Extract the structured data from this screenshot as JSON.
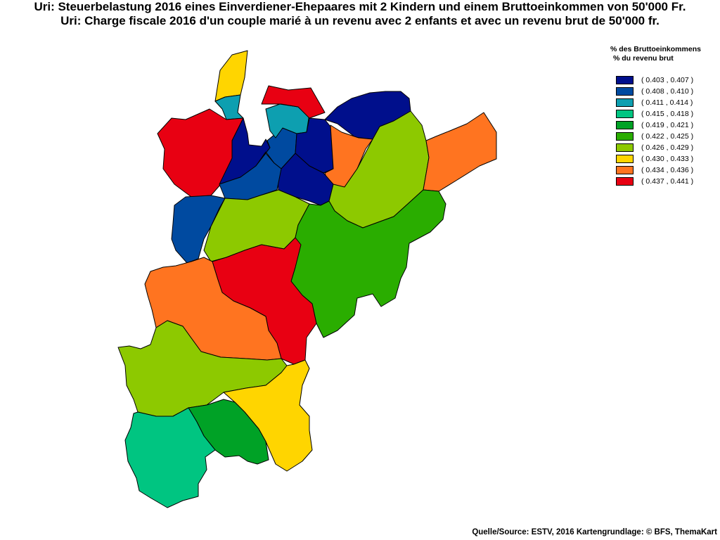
{
  "title_de": "Uri: Steuerbelastung 2016 eines Einverdiener-Ehepaares mit 2 Kindern und einem Bruttoeinkommen von 50'000 Fr.",
  "title_fr": "Uri: Charge fiscale 2016 d'un couple marié à un revenu avec 2 enfants et avec un revenu brut de 50'000 fr.",
  "legend": {
    "heading_de": "% des Bruttoeinkommens",
    "heading_fr": "% du revenu brut",
    "classes": [
      {
        "label": "( 0.403 , 0.407 )",
        "color": "#000f8c"
      },
      {
        "label": "( 0.408 , 0.410 )",
        "color": "#004aa0"
      },
      {
        "label": "( 0.411 , 0.414 )",
        "color": "#0d9fb0"
      },
      {
        "label": "( 0.415 , 0.418 )",
        "color": "#00c581"
      },
      {
        "label": "( 0.419 , 0.421 )",
        "color": "#00a226"
      },
      {
        "label": "( 0.422 , 0.425 )",
        "color": "#2aad00"
      },
      {
        "label": "( 0.426 , 0.429 )",
        "color": "#8dc900"
      },
      {
        "label": "( 0.430 , 0.433 )",
        "color": "#ffd500"
      },
      {
        "label": "( 0.434 , 0.436 )",
        "color": "#ff7420"
      },
      {
        "label": "( 0.437 , 0.441 )",
        "color": "#e80012"
      }
    ]
  },
  "source": "Quelle/Source: ESTV, 2016 Kartengrundlage: © BFS, ThemaKart"
}
